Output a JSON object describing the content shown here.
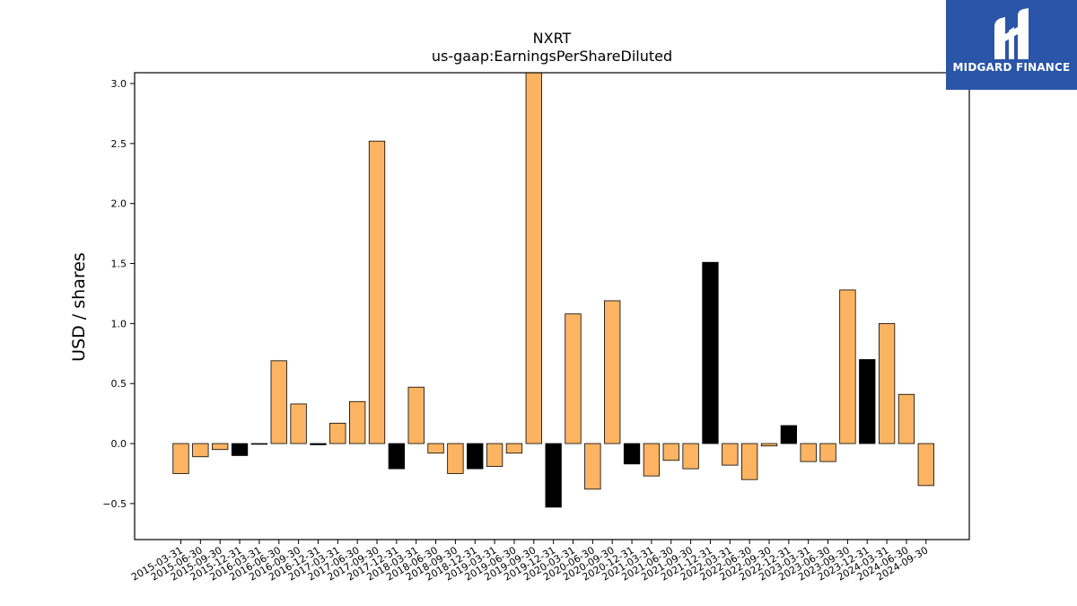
{
  "logo": {
    "text": "MIDGARD FINANCE",
    "background": "#2a55a8"
  },
  "chart_data": {
    "type": "bar",
    "title": "NXRT",
    "subtitle": "us-gaap:EarningsPerShareDiluted",
    "xlabel": "",
    "ylabel": "USD / shares",
    "ylim": [
      -0.8,
      3.09
    ],
    "yticks": [
      -0.5,
      0.0,
      0.5,
      1.0,
      1.5,
      2.0,
      2.5,
      3.0
    ],
    "ytick_labels": [
      "−0.5",
      "0.0",
      "0.5",
      "1.0",
      "1.5",
      "2.0",
      "2.5",
      "3.0"
    ],
    "grid": false,
    "colors": {
      "quarter": "#fdb462",
      "year_end": "#000000",
      "edge": "#000000"
    },
    "categories": [
      "2015-03-31",
      "2015-06-30",
      "2015-09-30",
      "2015-12-31",
      "2016-03-31",
      "2016-06-30",
      "2016-09-30",
      "2016-12-31",
      "2017-03-31",
      "2017-06-30",
      "2017-09-30",
      "2017-12-31",
      "2018-03-31",
      "2018-06-30",
      "2018-09-30",
      "2018-12-31",
      "2019-03-31",
      "2019-06-30",
      "2019-09-30",
      "2019-12-31",
      "2020-03-31",
      "2020-06-30",
      "2020-09-30",
      "2020-12-31",
      "2021-03-31",
      "2021-06-30",
      "2021-09-30",
      "2021-12-31",
      "2022-03-31",
      "2022-06-30",
      "2022-09-30",
      "2022-12-31",
      "2023-03-31",
      "2023-06-30",
      "2023-09-30",
      "2023-12-31",
      "2024-03-31",
      "2024-06-30",
      "2024-09-30"
    ],
    "values": [
      -0.25,
      -0.11,
      -0.05,
      -0.1,
      0.0,
      0.69,
      0.33,
      -0.01,
      0.17,
      0.35,
      2.52,
      -0.21,
      0.47,
      -0.08,
      -0.25,
      -0.21,
      -0.19,
      -0.08,
      3.18,
      -0.53,
      1.08,
      -0.38,
      1.19,
      -0.17,
      -0.27,
      -0.14,
      -0.21,
      1.51,
      -0.18,
      -0.3,
      -0.02,
      0.15,
      -0.15,
      -0.15,
      1.28,
      0.7,
      1.0,
      0.41,
      -0.35
    ]
  }
}
